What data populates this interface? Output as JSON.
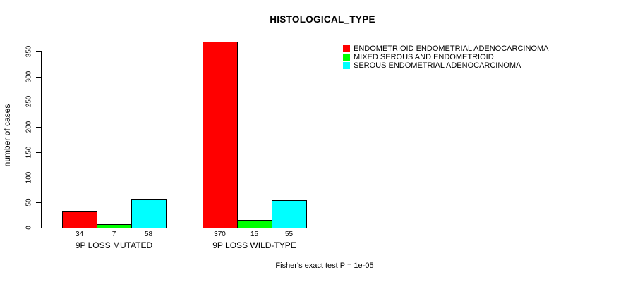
{
  "chart_data": {
    "type": "bar",
    "title": "HISTOLOGICAL_TYPE",
    "ylabel": "number of cases",
    "xlabel": "",
    "categories": [
      "9P LOSS MUTATED",
      "9P LOSS WILD-TYPE"
    ],
    "series": [
      {
        "name": "ENDOMETRIOID ENDOMETRIAL ADENOCARCINOMA",
        "color": "#FF0000",
        "values": [
          34,
          370
        ]
      },
      {
        "name": "MIXED SEROUS AND ENDOMETRIOID",
        "color": "#00FF00",
        "values": [
          7,
          15
        ]
      },
      {
        "name": "SEROUS ENDOMETRIAL ADENOCARCINOMA",
        "color": "#00FFFF",
        "values": [
          58,
          55
        ]
      }
    ],
    "yticks": [
      0,
      50,
      100,
      150,
      200,
      250,
      300,
      350
    ],
    "ylim": [
      0,
      350
    ],
    "bar_border_color": "#000000",
    "grid": false,
    "legend_position": "topright",
    "show_bar_values": true,
    "annotation": "Fisher's exact test P = 1e-05"
  }
}
